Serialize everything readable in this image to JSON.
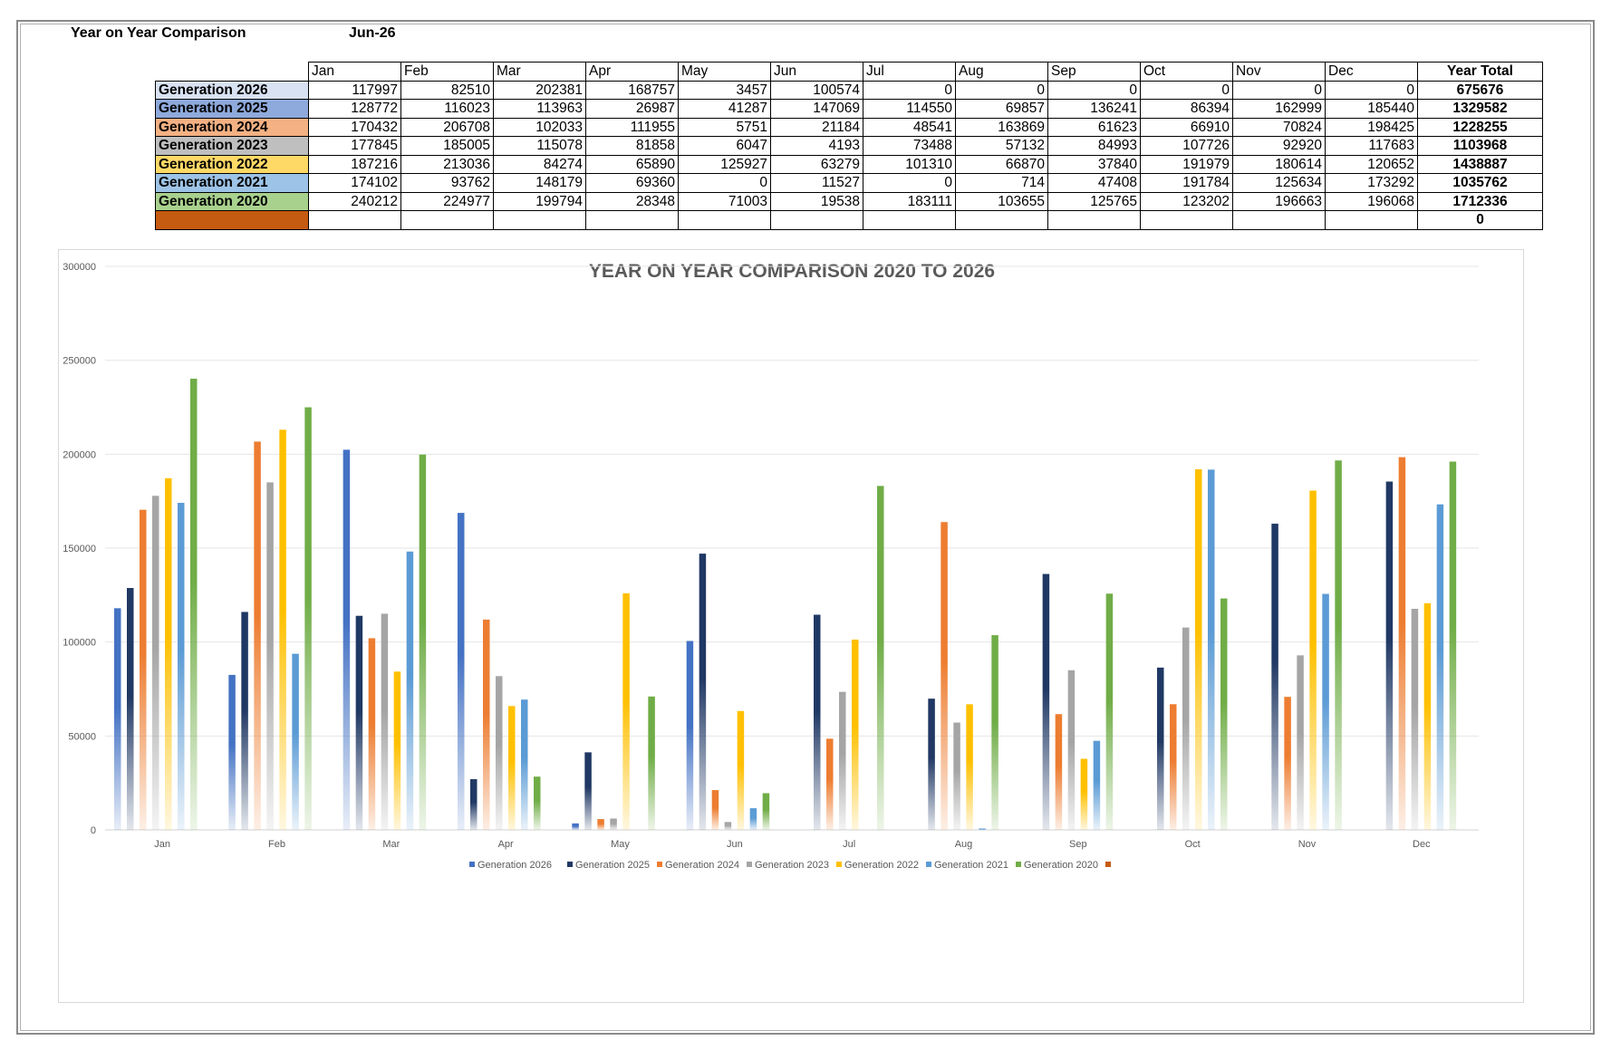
{
  "header": {
    "title": "Year on Year Comparison",
    "date": "Jun-26"
  },
  "table": {
    "months": [
      "Jan",
      "Feb",
      "Mar",
      "Apr",
      "May",
      "Jun",
      "Jul",
      "Aug",
      "Sep",
      "Oct",
      "Nov",
      "Dec"
    ],
    "total_header": "Year Total",
    "rows": [
      {
        "label": "Generation 2026",
        "color": "#d9e2f3",
        "values": [
          "117997",
          "82510",
          "202381",
          "168757",
          "3457",
          "100574",
          "0",
          "0",
          "0",
          "0",
          "0",
          "0"
        ],
        "total": "675676"
      },
      {
        "label": "Generation 2025",
        "color": "#8ea9db",
        "values": [
          "128772",
          "116023",
          "113963",
          "26987",
          "41287",
          "147069",
          "114550",
          "69857",
          "136241",
          "86394",
          "162999",
          "185440"
        ],
        "total": "1329582"
      },
      {
        "label": "Generation 2024",
        "color": "#f4b183",
        "values": [
          "170432",
          "206708",
          "102033",
          "111955",
          "5751",
          "21184",
          "48541",
          "163869",
          "61623",
          "66910",
          "70824",
          "198425"
        ],
        "total": "1228255"
      },
      {
        "label": "Generation 2023",
        "color": "#bfbfbf",
        "values": [
          "177845",
          "185005",
          "115078",
          "81858",
          "6047",
          "4193",
          "73488",
          "57132",
          "84993",
          "107726",
          "92920",
          "117683"
        ],
        "total": "1103968"
      },
      {
        "label": "Generation 2022",
        "color": "#ffd966",
        "values": [
          "187216",
          "213036",
          "84274",
          "65890",
          "125927",
          "63279",
          "101310",
          "66870",
          "37840",
          "191979",
          "180614",
          "120652"
        ],
        "total": "1438887"
      },
      {
        "label": "Generation 2021",
        "color": "#9dc3e6",
        "values": [
          "174102",
          "93762",
          "148179",
          "69360",
          "0",
          "11527",
          "0",
          "714",
          "47408",
          "191784",
          "125634",
          "173292"
        ],
        "total": "1035762"
      },
      {
        "label": "Generation 2020",
        "color": "#a9d18e",
        "values": [
          "240212",
          "224977",
          "199794",
          "28348",
          "71003",
          "19538",
          "183111",
          "103655",
          "125765",
          "123202",
          "196663",
          "196068"
        ],
        "total": "1712336"
      },
      {
        "label": "",
        "color": "#c55a11",
        "values": [
          "",
          "",
          "",
          "",
          "",
          "",
          "",
          "",
          "",
          "",
          "",
          ""
        ],
        "total": "0"
      }
    ]
  },
  "chart_data": {
    "type": "bar",
    "title": "YEAR ON YEAR COMPARISON 2020 TO 2026",
    "categories": [
      "Jan",
      "Feb",
      "Mar",
      "Apr",
      "May",
      "Jun",
      "Jul",
      "Aug",
      "Sep",
      "Oct",
      "Nov",
      "Dec"
    ],
    "ylim": [
      0,
      300000
    ],
    "yticks": [
      0,
      50000,
      100000,
      150000,
      200000,
      250000,
      300000
    ],
    "grid": true,
    "legend_position": "bottom",
    "series": [
      {
        "name": "Generation 2026",
        "color": "#4472c4",
        "values": [
          117997,
          82510,
          202381,
          168757,
          3457,
          100574,
          0,
          0,
          0,
          0,
          0,
          0
        ]
      },
      {
        "name": "Generation 2025",
        "color": "#203864",
        "values": [
          128772,
          116023,
          113963,
          26987,
          41287,
          147069,
          114550,
          69857,
          136241,
          86394,
          162999,
          185440
        ]
      },
      {
        "name": "Generation 2024",
        "color": "#ed7d31",
        "values": [
          170432,
          206708,
          102033,
          111955,
          5751,
          21184,
          48541,
          163869,
          61623,
          66910,
          70824,
          198425
        ]
      },
      {
        "name": "Generation 2023",
        "color": "#a5a5a5",
        "values": [
          177845,
          185005,
          115078,
          81858,
          6047,
          4193,
          73488,
          57132,
          84993,
          107726,
          92920,
          117683
        ]
      },
      {
        "name": "Generation 2022",
        "color": "#ffc000",
        "values": [
          187216,
          213036,
          84274,
          65890,
          125927,
          63279,
          101310,
          66870,
          37840,
          191979,
          180614,
          120652
        ]
      },
      {
        "name": "Generation 2021",
        "color": "#5b9bd5",
        "values": [
          174102,
          93762,
          148179,
          69360,
          0,
          11527,
          0,
          714,
          47408,
          191784,
          125634,
          173292
        ]
      },
      {
        "name": "Generation 2020",
        "color": "#70ad47",
        "values": [
          240212,
          224977,
          199794,
          28348,
          71003,
          19538,
          183111,
          103655,
          125765,
          123202,
          196663,
          196068
        ]
      },
      {
        "name": "",
        "color": "#c55a11",
        "values": [
          0,
          0,
          0,
          0,
          0,
          0,
          0,
          0,
          0,
          0,
          0,
          0
        ]
      }
    ]
  }
}
